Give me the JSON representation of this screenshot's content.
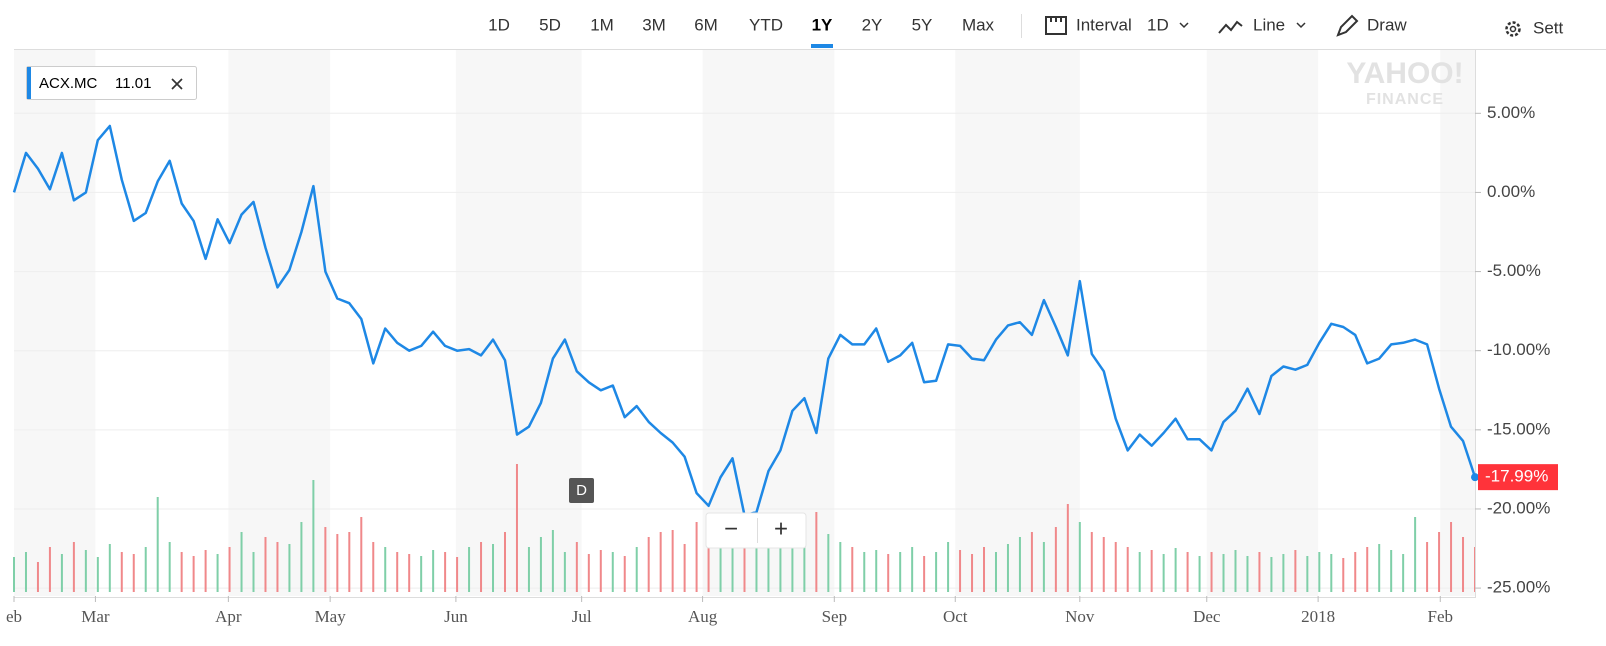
{
  "toolbar": {
    "ranges": [
      "1D",
      "5D",
      "1M",
      "3M",
      "6M",
      "YTD",
      "1Y",
      "2Y",
      "5Y",
      "Max"
    ],
    "selected": "1Y",
    "interval_label": "Interval",
    "interval_value": "1D",
    "chart_type": "Line",
    "draw": "Draw",
    "settings": "Sett"
  },
  "chart_data": {
    "type": "line",
    "series": [
      {
        "name": "ACX.MC",
        "color": "#1e88e5",
        "values": [
          0,
          2.5,
          1.5,
          0.2,
          2.5,
          -0.5,
          0,
          3.3,
          4.2,
          0.8,
          -1.8,
          -1.3,
          0.7,
          2,
          -0.7,
          -1.8,
          -4.2,
          -1.7,
          -3.2,
          -1.4,
          -0.6,
          -3.5,
          -6,
          -4.9,
          -2.5,
          0.4,
          -5,
          -6.7,
          -7,
          -8,
          -10.8,
          -8.6,
          -9.5,
          -10,
          -9.7,
          -8.8,
          -9.7,
          -10,
          -9.9,
          -10.3,
          -9.3,
          -10.6,
          -15.3,
          -14.8,
          -13.3,
          -10.5,
          -9.3,
          -11.3,
          -12,
          -12.5,
          -12.2,
          -14.2,
          -13.5,
          -14.5,
          -15.2,
          -15.8,
          -16.7,
          -19,
          -19.8,
          -18,
          -16.8,
          -20.4,
          -20.2,
          -17.6,
          -16.3,
          -13.8,
          -13,
          -15.2,
          -10.5,
          -9,
          -9.6,
          -9.6,
          -8.6,
          -10.7,
          -10.3,
          -9.5,
          -12,
          -11.9,
          -9.6,
          -9.7,
          -10.5,
          -10.6,
          -9.3,
          -8.4,
          -8.2,
          -9,
          -6.8,
          -8.5,
          -10.3,
          -5.6,
          -10.2,
          -11.3,
          -14.3,
          -16.3,
          -15.3,
          -16,
          -15.2,
          -14.3,
          -15.6,
          -15.6,
          -16.3,
          -14.5,
          -13.8,
          -12.4,
          -14,
          -11.6,
          -11,
          -11.2,
          -10.9,
          -9.5,
          -8.3,
          -8.5,
          -9,
          -10.8,
          -10.5,
          -9.6,
          -9.5,
          -9.3,
          -9.6,
          -12.4,
          -14.8,
          -15.7,
          -17.99
        ]
      }
    ],
    "last_price": 11.01,
    "end_label": "-17.99%",
    "volume": [
      35,
      40,
      30,
      45,
      38,
      50,
      42,
      35,
      48,
      40,
      38,
      45,
      95,
      50,
      40,
      36,
      42,
      38,
      45,
      60,
      40,
      55,
      50,
      48,
      70,
      112,
      65,
      58,
      60,
      75,
      50,
      45,
      40,
      38,
      36,
      42,
      40,
      35,
      45,
      50,
      48,
      60,
      128,
      45,
      55,
      62,
      40,
      50,
      38,
      42,
      40,
      36,
      45,
      55,
      60,
      62,
      48,
      70,
      65,
      58,
      55,
      60,
      50,
      45,
      70,
      75,
      62,
      80,
      58,
      50,
      45,
      40,
      42,
      38,
      40,
      45,
      36,
      40,
      50,
      42,
      38,
      45,
      40,
      48,
      55,
      60,
      50,
      65,
      88,
      70,
      60,
      55,
      50,
      45,
      40,
      42,
      38,
      44,
      40,
      36,
      40,
      38,
      42,
      36,
      40,
      35,
      38,
      42,
      36,
      40,
      38,
      34,
      40,
      45,
      48,
      42,
      38,
      75,
      50,
      60,
      70,
      55,
      45
    ],
    "volume_lim": [
      0,
      140
    ],
    "up_color": "#7fcfa8",
    "down_color": "#f0888a",
    "xlim": [
      0,
      122
    ],
    "xticks": [
      {
        "value": 0,
        "label": "eb"
      },
      {
        "value": 6.8,
        "label": "Mar"
      },
      {
        "value": 17.9,
        "label": "Apr"
      },
      {
        "value": 26.4,
        "label": "May"
      },
      {
        "value": 36.9,
        "label": "Jun"
      },
      {
        "value": 47.4,
        "label": "Jul"
      },
      {
        "value": 57.5,
        "label": "Aug"
      },
      {
        "value": 68.5,
        "label": "Sep"
      },
      {
        "value": 78.6,
        "label": "Oct"
      },
      {
        "value": 89,
        "label": "Nov"
      },
      {
        "value": 99.6,
        "label": "Dec"
      },
      {
        "value": 108.9,
        "label": "2018"
      },
      {
        "value": 119.1,
        "label": "Feb"
      }
    ],
    "ylim": [
      -25.5,
      9
    ],
    "yticks": [
      {
        "value": 5,
        "label": "5.00%"
      },
      {
        "value": 0,
        "label": "0.00%"
      },
      {
        "value": -5,
        "label": "-5.00%"
      },
      {
        "value": -10,
        "label": "-10.00%"
      },
      {
        "value": -15,
        "label": "-15.00%"
      },
      {
        "value": -20,
        "label": "-20.00%"
      },
      {
        "value": -25,
        "label": "-25.00%"
      }
    ],
    "grid": true,
    "event_marker": "D",
    "zoom": [
      "−",
      "+"
    ],
    "watermark": [
      "YAHOO!",
      "FINANCE"
    ]
  }
}
